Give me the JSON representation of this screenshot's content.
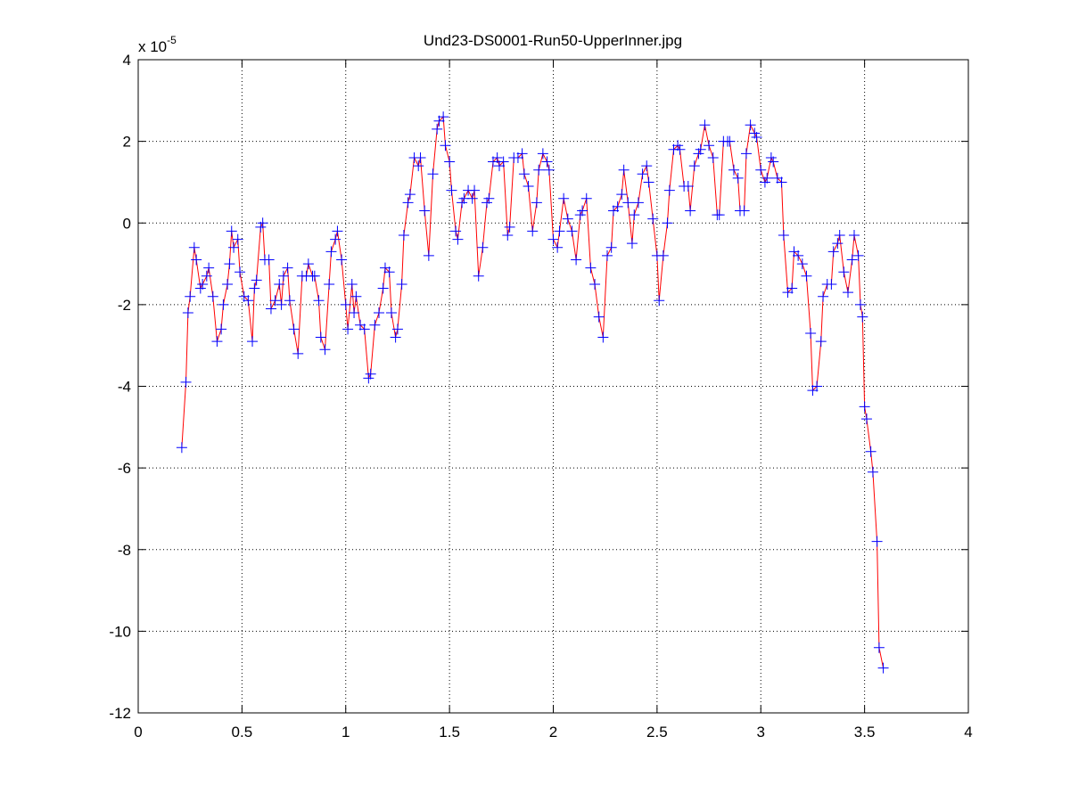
{
  "chart_data": {
    "type": "line",
    "title": "Und23-DS0001-Run50-UpperInner.jpg",
    "y_multiplier": "x 10",
    "y_exponent": "-5",
    "xlim": [
      0,
      4
    ],
    "xticks": [
      0,
      0.5,
      1,
      1.5,
      2,
      2.5,
      3,
      3.5,
      4
    ],
    "ylim": [
      -12,
      4
    ],
    "yticks": [
      -12,
      -10,
      -8,
      -6,
      -4,
      -2,
      0,
      2,
      4
    ],
    "grid": true,
    "line_color": "#ff0000",
    "marker_color": "#0000ff",
    "marker": "+",
    "x": [
      0.21,
      0.23,
      0.24,
      0.25,
      0.27,
      0.28,
      0.3,
      0.31,
      0.33,
      0.34,
      0.36,
      0.38,
      0.4,
      0.41,
      0.43,
      0.44,
      0.45,
      0.46,
      0.48,
      0.49,
      0.51,
      0.53,
      0.55,
      0.56,
      0.57,
      0.59,
      0.6,
      0.61,
      0.63,
      0.64,
      0.66,
      0.68,
      0.69,
      0.7,
      0.72,
      0.73,
      0.75,
      0.77,
      0.79,
      0.81,
      0.82,
      0.84,
      0.85,
      0.87,
      0.88,
      0.9,
      0.92,
      0.93,
      0.95,
      0.96,
      0.98,
      1.0,
      1.01,
      1.03,
      1.04,
      1.05,
      1.07,
      1.09,
      1.11,
      1.12,
      1.14,
      1.16,
      1.18,
      1.19,
      1.21,
      1.22,
      1.24,
      1.25,
      1.27,
      1.28,
      1.3,
      1.31,
      1.33,
      1.35,
      1.36,
      1.38,
      1.4,
      1.42,
      1.44,
      1.45,
      1.47,
      1.48,
      1.5,
      1.51,
      1.53,
      1.54,
      1.56,
      1.57,
      1.59,
      1.61,
      1.62,
      1.64,
      1.66,
      1.68,
      1.69,
      1.71,
      1.73,
      1.74,
      1.76,
      1.78,
      1.79,
      1.81,
      1.83,
      1.85,
      1.86,
      1.88,
      1.9,
      1.92,
      1.93,
      1.95,
      1.97,
      1.98,
      2.0,
      2.02,
      2.03,
      2.05,
      2.07,
      2.09,
      2.11,
      2.13,
      2.14,
      2.16,
      2.18,
      2.2,
      2.22,
      2.24,
      2.26,
      2.28,
      2.29,
      2.31,
      2.33,
      2.34,
      2.36,
      2.38,
      2.39,
      2.41,
      2.43,
      2.45,
      2.46,
      2.48,
      2.5,
      2.51,
      2.53,
      2.55,
      2.56,
      2.58,
      2.6,
      2.61,
      2.63,
      2.65,
      2.66,
      2.68,
      2.7,
      2.71,
      2.73,
      2.75,
      2.77,
      2.79,
      2.8,
      2.82,
      2.84,
      2.85,
      2.87,
      2.89,
      2.9,
      2.92,
      2.93,
      2.95,
      2.97,
      2.98,
      3.0,
      3.02,
      3.03,
      3.05,
      3.06,
      3.08,
      3.1,
      3.11,
      3.13,
      3.15,
      3.16,
      3.18,
      3.2,
      3.22,
      3.24,
      3.25,
      3.27,
      3.29,
      3.3,
      3.32,
      3.34,
      3.35,
      3.37,
      3.38,
      3.4,
      3.42,
      3.44,
      3.45,
      3.47,
      3.48,
      3.49,
      3.5,
      3.51,
      3.53,
      3.54,
      3.56,
      3.57,
      3.59
    ],
    "values": [
      -5.5,
      -3.9,
      -2.2,
      -1.8,
      -0.6,
      -0.9,
      -1.6,
      -1.5,
      -1.3,
      -1.1,
      -1.8,
      -2.9,
      -2.6,
      -2.0,
      -1.5,
      -1.0,
      -0.2,
      -0.6,
      -0.4,
      -1.2,
      -1.8,
      -1.9,
      -2.9,
      -1.6,
      -1.4,
      -0.1,
      0.0,
      -0.9,
      -0.9,
      -2.1,
      -1.9,
      -1.5,
      -2.0,
      -1.3,
      -1.1,
      -1.9,
      -2.6,
      -3.2,
      -1.3,
      -1.3,
      -1.0,
      -1.3,
      -1.3,
      -1.9,
      -2.8,
      -3.1,
      -1.5,
      -0.7,
      -0.4,
      -0.2,
      -0.9,
      -2.0,
      -2.6,
      -1.5,
      -2.2,
      -1.8,
      -2.5,
      -2.6,
      -3.8,
      -3.7,
      -2.5,
      -2.2,
      -1.6,
      -1.1,
      -1.2,
      -2.2,
      -2.8,
      -2.6,
      -1.5,
      -0.3,
      0.5,
      0.7,
      1.6,
      1.4,
      1.6,
      0.3,
      -0.8,
      1.2,
      2.3,
      2.5,
      2.6,
      1.9,
      1.5,
      0.8,
      -0.2,
      -0.4,
      0.5,
      0.6,
      0.8,
      0.6,
      0.8,
      -1.3,
      -0.6,
      0.5,
      0.6,
      1.5,
      1.6,
      1.4,
      1.5,
      -0.3,
      -0.1,
      1.6,
      1.6,
      1.7,
      1.2,
      0.9,
      -0.2,
      0.5,
      1.3,
      1.7,
      1.5,
      1.3,
      -0.4,
      -0.6,
      -0.2,
      0.6,
      0.1,
      -0.2,
      -0.9,
      0.2,
      0.3,
      0.6,
      -1.1,
      -1.5,
      -2.3,
      -2.8,
      -0.8,
      -0.6,
      0.3,
      0.4,
      0.7,
      1.3,
      0.5,
      -0.5,
      0.2,
      0.5,
      1.2,
      1.4,
      1.0,
      0.1,
      -0.8,
      -1.9,
      -0.8,
      0.0,
      0.8,
      1.8,
      1.9,
      1.8,
      0.9,
      0.9,
      0.3,
      1.4,
      1.7,
      1.8,
      2.4,
      1.9,
      1.6,
      0.2,
      0.2,
      2.0,
      2.0,
      2.0,
      1.3,
      1.1,
      0.3,
      0.3,
      1.7,
      2.4,
      2.2,
      2.1,
      1.3,
      1.0,
      1.1,
      1.6,
      1.5,
      1.1,
      1.0,
      -0.3,
      -1.7,
      -1.6,
      -0.7,
      -0.8,
      -1.0,
      -1.3,
      -2.7,
      -4.1,
      -4.0,
      -2.9,
      -1.8,
      -1.5,
      -1.5,
      -0.7,
      -0.5,
      -0.3,
      -1.2,
      -1.7,
      -0.9,
      -0.3,
      -0.8,
      -2.0,
      -2.3,
      -4.5,
      -4.8,
      -5.6,
      -6.1,
      -7.8,
      -10.4,
      -10.9
    ]
  }
}
